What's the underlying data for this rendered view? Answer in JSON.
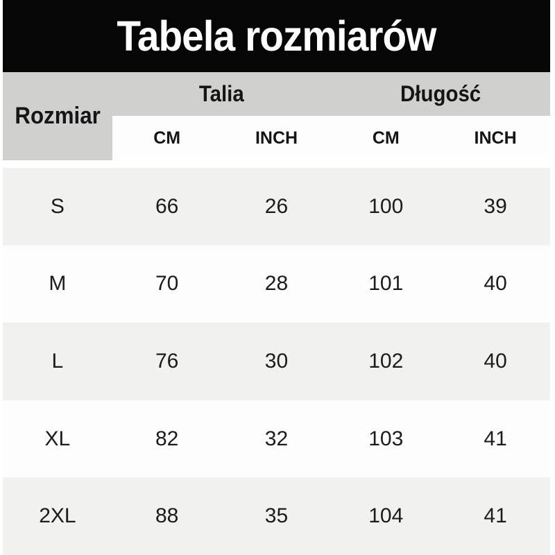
{
  "title": {
    "text": "Tabela rozmiarów"
  },
  "colors": {
    "title_bg": "#060606",
    "title_text": "#ffffff",
    "header_bg": "#d0d0cf",
    "subheader_bg": "#fdfdfd",
    "row_alt_bg": "#f1f1ef",
    "row_bg": "#fdfdfd",
    "text": "#1b1b1b"
  },
  "header": {
    "size_label": "Rozmiar",
    "talia_label": "Talia",
    "dlugosc_label": "Długość",
    "sub": {
      "cm1": "CM",
      "inch1": "INCH",
      "cm2": "CM",
      "inch2": "INCH"
    }
  },
  "rows": [
    {
      "size": "S",
      "talia_cm": "66",
      "talia_inch": "26",
      "dl_cm": "100",
      "dl_inch": "39"
    },
    {
      "size": "M",
      "talia_cm": "70",
      "talia_inch": "28",
      "dl_cm": "101",
      "dl_inch": "40"
    },
    {
      "size": "L",
      "talia_cm": "76",
      "talia_inch": "30",
      "dl_cm": "102",
      "dl_inch": "40"
    },
    {
      "size": "XL",
      "talia_cm": "82",
      "talia_inch": "32",
      "dl_cm": "103",
      "dl_inch": "41"
    },
    {
      "size": "2XL",
      "talia_cm": "88",
      "talia_inch": "35",
      "dl_cm": "104",
      "dl_inch": "41"
    }
  ],
  "chart_data": {
    "type": "table",
    "title": "Tabela rozmiarów",
    "columns": [
      "Rozmiar",
      "Talia CM",
      "Talia INCH",
      "Długość CM",
      "Długość INCH"
    ],
    "column_groups": [
      {
        "label": "Talia",
        "sub": [
          "CM",
          "INCH"
        ]
      },
      {
        "label": "Długość",
        "sub": [
          "CM",
          "INCH"
        ]
      }
    ],
    "rows": [
      [
        "S",
        66,
        26,
        100,
        39
      ],
      [
        "M",
        70,
        28,
        101,
        40
      ],
      [
        "L",
        76,
        30,
        102,
        40
      ],
      [
        "XL",
        82,
        32,
        103,
        41
      ],
      [
        "2XL",
        88,
        35,
        104,
        41
      ]
    ]
  }
}
